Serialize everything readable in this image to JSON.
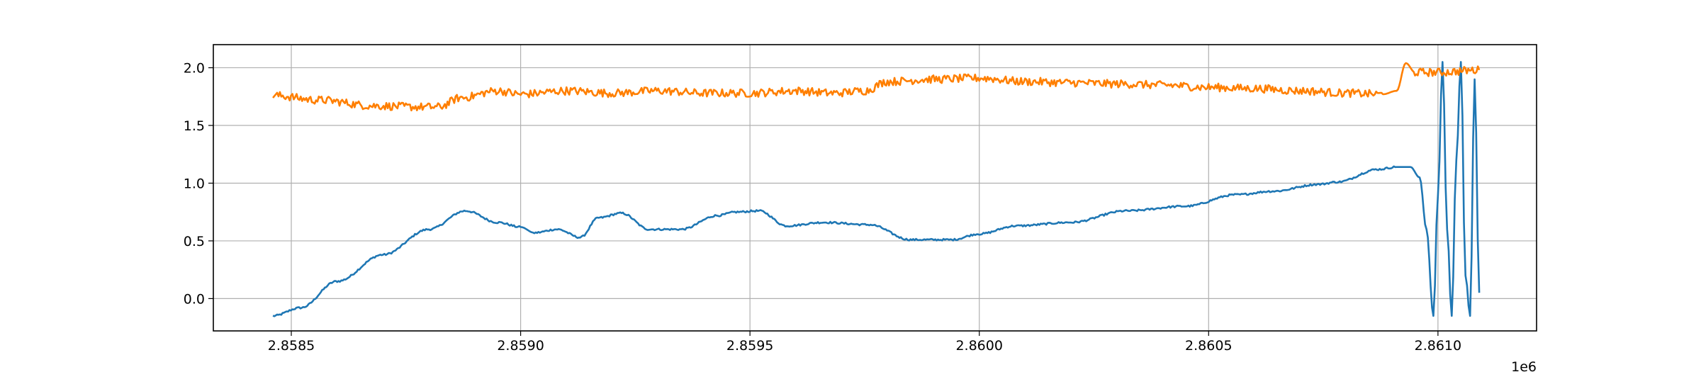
{
  "chart_data": {
    "type": "line",
    "title": "",
    "xlabel": "",
    "ylabel": "",
    "x_offset_label": "1e6",
    "xlim": [
      2858330,
      2861215
    ],
    "ylim": [
      -0.28,
      2.2
    ],
    "grid": true,
    "xticks": [
      2858500,
      2859000,
      2859500,
      2860000,
      2860500,
      2861000
    ],
    "xtick_labels": [
      "2.8585",
      "2.8590",
      "2.8595",
      "2.8600",
      "2.8605",
      "2.8610"
    ],
    "yticks": [
      0.0,
      0.5,
      1.0,
      1.5,
      2.0
    ],
    "ytick_labels": [
      "0.0",
      "0.5",
      "1.0",
      "1.5",
      "2.0"
    ],
    "series": [
      {
        "color": "#1f77b4",
        "x": [
          2858460,
          2858520,
          2858600,
          2858700,
          2858800,
          2858880,
          2858950,
          2859000,
          2859030,
          2859080,
          2859130,
          2859170,
          2859220,
          2859280,
          2859350,
          2859430,
          2859470,
          2859520,
          2859580,
          2859660,
          2859760,
          2859850,
          2859940,
          2860000,
          2860080,
          2860200,
          2860320,
          2860450,
          2860560,
          2860640,
          2860740,
          2860780,
          2860870,
          2860910,
          2860940,
          2860960,
          2860975,
          2860990,
          2861000,
          2861010,
          2861020,
          2861030,
          2861040,
          2861050,
          2861060,
          2861070,
          2861080,
          2861090
        ],
        "y": [
          -0.15,
          -0.08,
          0.15,
          0.38,
          0.6,
          0.76,
          0.66,
          0.62,
          0.57,
          0.6,
          0.53,
          0.7,
          0.74,
          0.6,
          0.6,
          0.72,
          0.75,
          0.76,
          0.63,
          0.66,
          0.64,
          0.51,
          0.51,
          0.56,
          0.63,
          0.66,
          0.76,
          0.8,
          0.9,
          0.93,
          0.99,
          1.01,
          1.12,
          1.14,
          1.14,
          1.05,
          0.6,
          -0.15,
          0.9,
          2.05,
          0.6,
          -0.15,
          1.2,
          2.05,
          0.2,
          -0.15,
          1.9,
          0.05
        ],
        "noise": 0.008
      },
      {
        "color": "#ff7f00",
        "x": [
          2858460,
          2858560,
          2858680,
          2858780,
          2858820,
          2858870,
          2858950,
          2859000,
          2859100,
          2859200,
          2859300,
          2859400,
          2859500,
          2859600,
          2859680,
          2859750,
          2859800,
          2859900,
          2860000,
          2860100,
          2860200,
          2860300,
          2860400,
          2860500,
          2860600,
          2860700,
          2860800,
          2860880,
          2860910,
          2860930,
          2860950,
          2861000,
          2861090
        ],
        "y": [
          1.76,
          1.72,
          1.67,
          1.66,
          1.66,
          1.74,
          1.8,
          1.77,
          1.8,
          1.78,
          1.8,
          1.78,
          1.78,
          1.8,
          1.78,
          1.8,
          1.88,
          1.9,
          1.91,
          1.88,
          1.87,
          1.86,
          1.85,
          1.83,
          1.82,
          1.8,
          1.78,
          1.77,
          1.8,
          2.04,
          1.96,
          1.96,
          1.98
        ],
        "noise": 0.035
      }
    ]
  }
}
